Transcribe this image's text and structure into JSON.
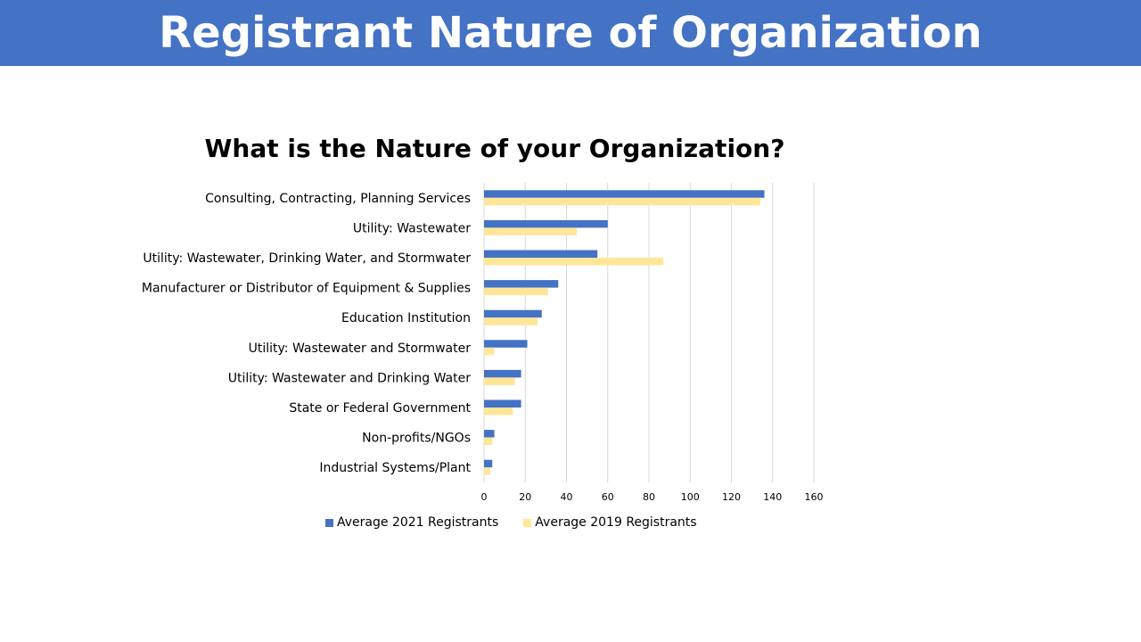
{
  "header": {
    "title": "Registrant Nature of Organization"
  },
  "colors": {
    "header_bg": "#4472c4",
    "series_2021": "#4472c4",
    "series_2019": "#ffe699",
    "grid": "#d9d9d9"
  },
  "chart_data": {
    "type": "bar",
    "orientation": "horizontal",
    "title": "What is the Nature of your Organization?",
    "categories": [
      "Consulting, Contracting, Planning Services",
      "Utility: Wastewater",
      "Utility: Wastewater, Drinking Water, and Stormwater",
      "Manufacturer or Distributor of Equipment & Supplies",
      "Education Institution",
      "Utility: Wastewater and Stormwater",
      "Utility: Wastewater and Drinking Water",
      "State or Federal Government",
      "Non-profits/NGOs",
      "Industrial Systems/Plant"
    ],
    "series": [
      {
        "name": "Average 2021 Registrants",
        "values": [
          136,
          60,
          55,
          36,
          28,
          21,
          18,
          18,
          5,
          4
        ]
      },
      {
        "name": "Average 2019 Registrants",
        "values": [
          134,
          45,
          87,
          31,
          26,
          5,
          15,
          14,
          4,
          3
        ]
      }
    ],
    "xlim": [
      0,
      160
    ],
    "xticks": [
      "0",
      "20",
      "40",
      "60",
      "80",
      "100",
      "120",
      "140",
      "160"
    ],
    "grid": true,
    "legend_position": "bottom"
  }
}
